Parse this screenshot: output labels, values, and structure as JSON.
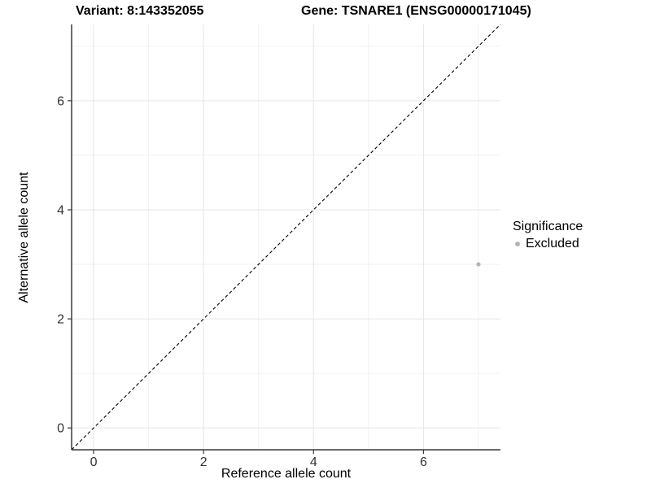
{
  "title": {
    "variant": "Variant: 8:143352055",
    "gene": "Gene: TSNARE1 (ENSG00000171045)"
  },
  "axes": {
    "x": {
      "label": "Reference allele count",
      "tick_labels": [
        "0",
        "2",
        "4",
        "6"
      ]
    },
    "y": {
      "label": "Alternative allele count",
      "tick_labels": [
        "0",
        "2",
        "4",
        "6"
      ]
    }
  },
  "legend": {
    "title": "Significance",
    "entries": [
      {
        "label": "Excluded",
        "marker": "dot-icon",
        "color": "#b5b5b5"
      }
    ]
  },
  "chart_data": {
    "type": "scatter",
    "title": "Variant: 8:143352055    Gene: TSNARE1 (ENSG00000171045)",
    "xlabel": "Reference allele count",
    "ylabel": "Alternative allele count",
    "xlim": [
      -0.4,
      7.4
    ],
    "ylim": [
      -0.4,
      7.4
    ],
    "x_major_ticks": [
      0,
      2,
      4,
      6
    ],
    "y_major_ticks": [
      0,
      2,
      4,
      6
    ],
    "x_minor_ticks": [
      1,
      3,
      5,
      7
    ],
    "y_minor_ticks": [
      1,
      3,
      5,
      7
    ],
    "grid": true,
    "legend_position": "right",
    "series": [
      {
        "name": "Excluded",
        "color": "#b5b5b5",
        "points": [
          {
            "x": 7,
            "y": 3
          }
        ]
      }
    ],
    "reference_line": {
      "type": "identity",
      "style": "dashed",
      "from": [
        -0.4,
        -0.4
      ],
      "to": [
        7.4,
        7.4
      ],
      "color": "#000000"
    }
  },
  "colors": {
    "background": "#ffffff",
    "grid_major": "#e6e6e6",
    "grid_minor": "#f2f2f2",
    "axis_line": "#3a3a3a",
    "tick_label": "#333333",
    "dashed_line": "#000000"
  }
}
